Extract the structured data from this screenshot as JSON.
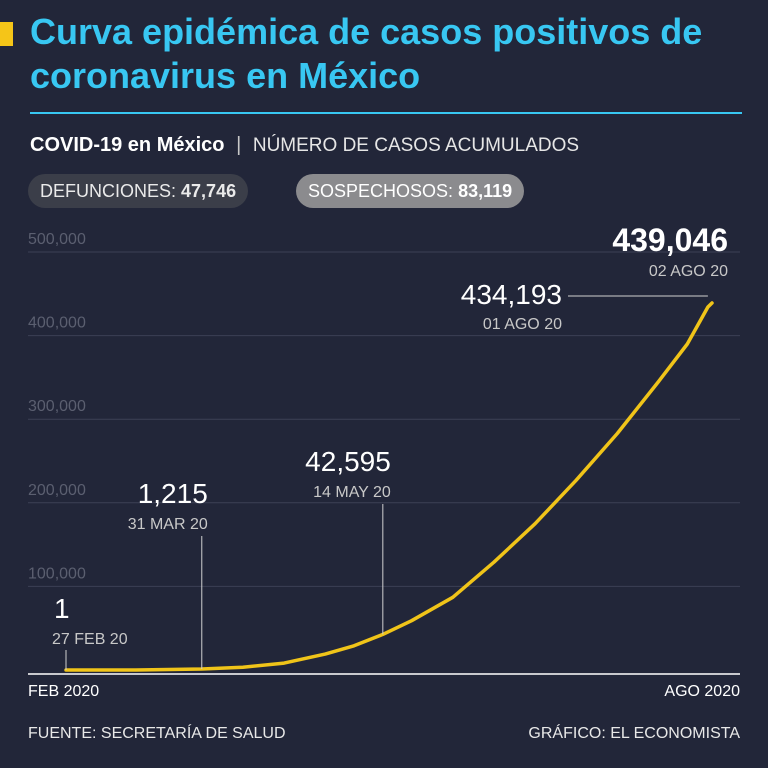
{
  "header": {
    "title": "Curva epidémica de casos positivos de coronavirus en México",
    "subtitle_bold": "COVID-19 en México",
    "subtitle_sep": "|",
    "subtitle_rest": "NÚMERO DE CASOS ACUMULADOS"
  },
  "pills": {
    "deaths_label": "DEFUNCIONES:",
    "deaths_value": "47,746",
    "suspects_label": "SOSPECHOSOS:",
    "suspects_value": "83,119"
  },
  "x_axis": {
    "start_label": "FEB 2020",
    "end_label": "AGO 2020"
  },
  "footer": {
    "source": "FUENTE: SECRETARÍA DE SALUD",
    "credit": "GRÁFICO: EL ECONOMISTA"
  },
  "colors": {
    "background": "#222639",
    "title": "#38c7f2",
    "accent": "#f5c518",
    "line": "#f0c419",
    "grid": "#3c4055",
    "tick": "#5b5f70"
  },
  "chart_data": {
    "type": "line",
    "xlim": [
      "2020-02-27",
      "2020-08-02"
    ],
    "ylim": [
      0,
      500000
    ],
    "y_ticks": [
      100000,
      200000,
      300000,
      400000,
      500000
    ],
    "y_tick_labels": [
      "100,000",
      "200,000",
      "300,000",
      "400,000",
      "500,000"
    ],
    "grid": true,
    "series": [
      {
        "points": [
          [
            "2020-02-27",
            1
          ],
          [
            "2020-03-15",
            50
          ],
          [
            "2020-03-31",
            1215
          ],
          [
            "2020-04-10",
            3400
          ],
          [
            "2020-04-20",
            8300
          ],
          [
            "2020-04-30",
            19000
          ],
          [
            "2020-05-07",
            29000
          ],
          [
            "2020-05-14",
            42595
          ],
          [
            "2020-05-21",
            59000
          ],
          [
            "2020-05-31",
            87000
          ],
          [
            "2020-06-10",
            129000
          ],
          [
            "2020-06-20",
            175000
          ],
          [
            "2020-06-30",
            227000
          ],
          [
            "2020-07-10",
            283000
          ],
          [
            "2020-07-20",
            345000
          ],
          [
            "2020-07-27",
            390000
          ],
          [
            "2020-08-01",
            434193
          ],
          [
            "2020-08-02",
            439046
          ]
        ]
      }
    ],
    "annotations": [
      {
        "date": "2020-02-27",
        "value": 1,
        "value_label": "1",
        "date_label": "27 FEB 20"
      },
      {
        "date": "2020-03-31",
        "value": 1215,
        "value_label": "1,215",
        "date_label": "31 MAR 20"
      },
      {
        "date": "2020-05-14",
        "value": 42595,
        "value_label": "42,595",
        "date_label": "14 MAY 20"
      },
      {
        "date": "2020-08-01",
        "value": 434193,
        "value_label": "434,193",
        "date_label": "01 AGO 20"
      },
      {
        "date": "2020-08-02",
        "value": 439046,
        "value_label": "439,046",
        "date_label": "02 AGO 20"
      }
    ]
  }
}
